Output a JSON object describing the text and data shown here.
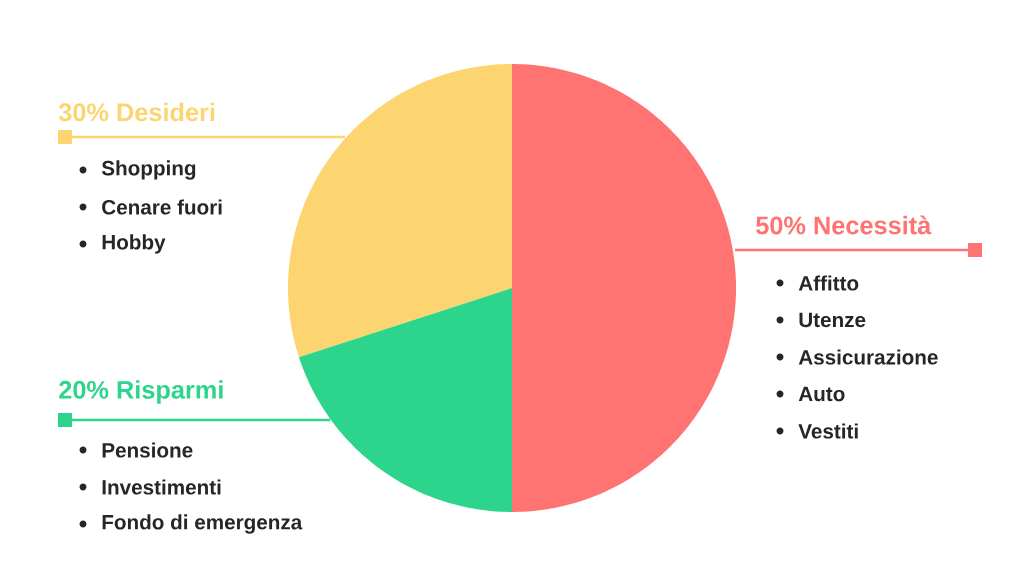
{
  "chart_data": {
    "type": "pie",
    "categories": [
      "50% Necessità",
      "30% Desideri",
      "20% Risparmi"
    ],
    "values": [
      50,
      30,
      20
    ],
    "colors": [
      "#ff7373",
      "#fcd571",
      "#2dd58c"
    ],
    "annotations": [
      "Affitto",
      "Utenze",
      "Assicurazione",
      "Auto",
      "Vestiti",
      "Shopping",
      "Cenare fuori",
      "Hobby",
      "Pensione",
      "Investimenti",
      "Fondo di emergenza"
    ]
  }
}
